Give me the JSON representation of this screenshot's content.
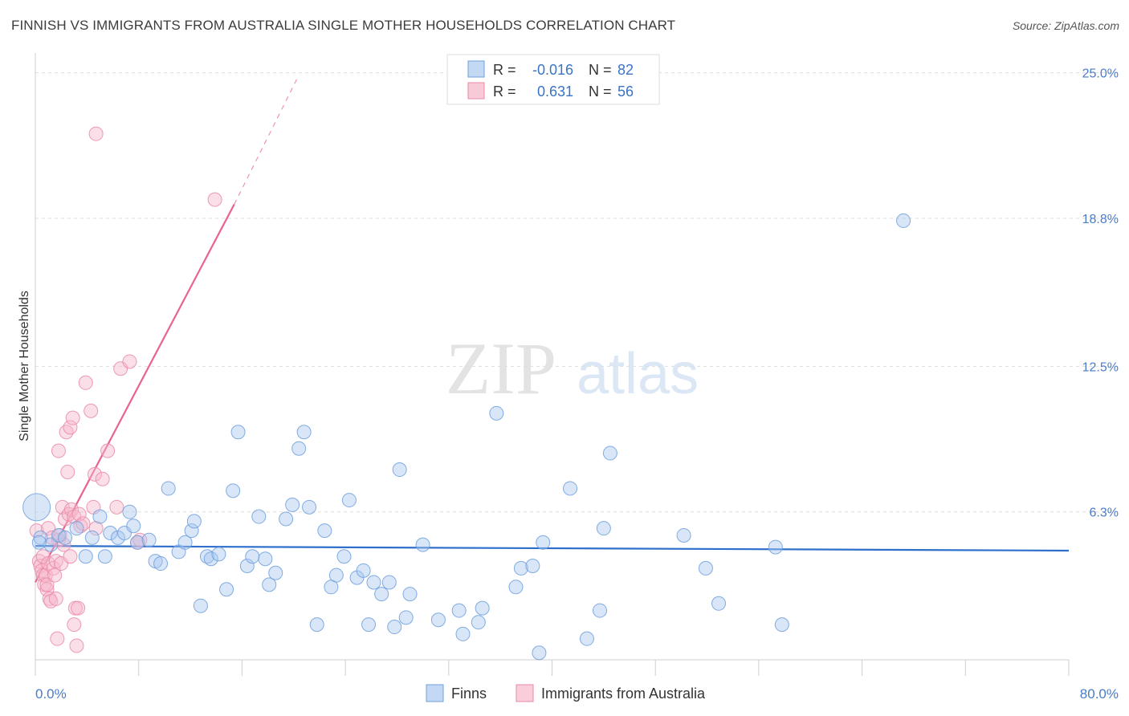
{
  "header": {
    "title": "FINNISH VS IMMIGRANTS FROM AUSTRALIA SINGLE MOTHER HOUSEHOLDS CORRELATION CHART",
    "source": "Source: ZipAtlas.com"
  },
  "watermark": {
    "zip": "ZIP",
    "atlas": "atlas"
  },
  "legend_box": {
    "rows": [
      {
        "r_label": "R =",
        "r_value": "-0.016",
        "n_label": "N =",
        "n_value": "82",
        "color": "#9bbfeb"
      },
      {
        "r_label": "R =",
        "r_value": "0.631",
        "n_label": "N =",
        "n_value": "56",
        "color": "#f4a7be"
      }
    ]
  },
  "colors": {
    "finns_fill": "#a9c8f0",
    "finns_stroke": "#6f9fdc",
    "finns_line": "#2e6fcc",
    "aus_fill": "#f7b8cb",
    "aus_stroke": "#ea8aa7",
    "aus_line": "#e8648f",
    "tick_text": "#4a7cc7",
    "grid": "#dddddd"
  },
  "chart_data": {
    "type": "scatter",
    "title": "FINNISH VS IMMIGRANTS FROM AUSTRALIA SINGLE MOTHER HOUSEHOLDS CORRELATION CHART",
    "xlabel": "",
    "ylabel": "Single Mother Households",
    "xlim": [
      0,
      80
    ],
    "ylim": [
      0,
      25.5
    ],
    "x_tick_labels": [
      "0.0%",
      "80.0%"
    ],
    "y_ticks": [
      6.3,
      12.5,
      18.8,
      25.0
    ],
    "y_tick_labels": [
      "6.3%",
      "12.5%",
      "18.8%",
      "25.0%"
    ],
    "grid": true,
    "legend_position": "top-center",
    "series": [
      {
        "name": "Finns",
        "r": -0.016,
        "n": 82,
        "trend": {
          "x0": 0,
          "y0": 4.85,
          "x1": 80,
          "y1": 4.65,
          "style": "solid"
        },
        "points": [
          [
            0.1,
            6.5
          ],
          [
            0.4,
            5.2
          ],
          [
            1.2,
            4.9
          ],
          [
            1.8,
            5.3
          ],
          [
            2.3,
            5.2
          ],
          [
            3.2,
            5.6
          ],
          [
            3.9,
            4.4
          ],
          [
            4.4,
            5.2
          ],
          [
            5.0,
            6.1
          ],
          [
            5.4,
            4.4
          ],
          [
            5.8,
            5.4
          ],
          [
            6.4,
            5.2
          ],
          [
            6.9,
            5.4
          ],
          [
            7.3,
            6.3
          ],
          [
            7.9,
            5.0
          ],
          [
            7.6,
            5.7
          ],
          [
            8.8,
            5.1
          ],
          [
            9.3,
            4.2
          ],
          [
            9.7,
            4.1
          ],
          [
            10.3,
            7.3
          ],
          [
            11.1,
            4.6
          ],
          [
            11.6,
            5.0
          ],
          [
            12.1,
            5.5
          ],
          [
            12.3,
            5.9
          ],
          [
            12.8,
            2.3
          ],
          [
            13.3,
            4.4
          ],
          [
            13.6,
            4.3
          ],
          [
            14.2,
            4.5
          ],
          [
            14.8,
            3.0
          ],
          [
            15.3,
            7.2
          ],
          [
            15.7,
            9.7
          ],
          [
            16.4,
            4.0
          ],
          [
            16.8,
            4.4
          ],
          [
            17.3,
            6.1
          ],
          [
            17.8,
            4.3
          ],
          [
            18.1,
            3.2
          ],
          [
            18.6,
            3.7
          ],
          [
            19.4,
            6.0
          ],
          [
            19.9,
            6.6
          ],
          [
            20.4,
            9.0
          ],
          [
            20.8,
            9.7
          ],
          [
            21.2,
            6.5
          ],
          [
            21.8,
            1.5
          ],
          [
            22.4,
            5.5
          ],
          [
            22.9,
            3.1
          ],
          [
            23.3,
            3.6
          ],
          [
            23.9,
            4.4
          ],
          [
            24.3,
            6.8
          ],
          [
            24.9,
            3.5
          ],
          [
            25.4,
            3.8
          ],
          [
            25.8,
            1.5
          ],
          [
            26.2,
            3.3
          ],
          [
            26.8,
            2.8
          ],
          [
            27.4,
            3.3
          ],
          [
            27.8,
            1.4
          ],
          [
            28.2,
            8.1
          ],
          [
            28.7,
            1.8
          ],
          [
            29.0,
            2.8
          ],
          [
            30.0,
            4.9
          ],
          [
            31.2,
            1.7
          ],
          [
            32.8,
            2.1
          ],
          [
            33.1,
            1.1
          ],
          [
            34.3,
            1.6
          ],
          [
            34.6,
            2.2
          ],
          [
            35.7,
            10.5
          ],
          [
            37.2,
            3.1
          ],
          [
            37.6,
            3.9
          ],
          [
            38.5,
            4.0
          ],
          [
            39.0,
            0.3
          ],
          [
            39.3,
            5.0
          ],
          [
            41.4,
            7.3
          ],
          [
            42.7,
            0.9
          ],
          [
            43.7,
            2.1
          ],
          [
            44.0,
            5.6
          ],
          [
            44.5,
            8.8
          ],
          [
            50.2,
            5.3
          ],
          [
            51.9,
            3.9
          ],
          [
            52.9,
            2.4
          ],
          [
            57.3,
            4.8
          ],
          [
            57.8,
            1.5
          ],
          [
            67.2,
            18.7
          ],
          [
            0.3,
            5.0
          ]
        ]
      },
      {
        "name": "Immigrants from Australia",
        "r": 0.631,
        "n": 56,
        "trend": {
          "x0": 0,
          "y0": 3.3,
          "x1": 15.4,
          "y1": 19.4,
          "style": "solid"
        },
        "trend_extension": {
          "x0": 15.4,
          "y0": 19.4,
          "x1": 20.4,
          "y1": 24.9,
          "style": "dashed"
        },
        "points": [
          [
            0.1,
            5.5
          ],
          [
            0.3,
            4.2
          ],
          [
            0.4,
            4.0
          ],
          [
            0.5,
            3.8
          ],
          [
            0.6,
            4.4
          ],
          [
            0.6,
            3.6
          ],
          [
            0.7,
            3.2
          ],
          [
            0.8,
            3.6
          ],
          [
            0.9,
            3.0
          ],
          [
            0.9,
            3.2
          ],
          [
            1.0,
            4.1
          ],
          [
            1.0,
            5.6
          ],
          [
            1.1,
            2.6
          ],
          [
            1.2,
            2.5
          ],
          [
            1.3,
            5.2
          ],
          [
            1.4,
            3.9
          ],
          [
            1.5,
            3.6
          ],
          [
            1.6,
            4.2
          ],
          [
            1.6,
            2.6
          ],
          [
            1.7,
            0.9
          ],
          [
            1.8,
            5.1
          ],
          [
            1.8,
            8.9
          ],
          [
            1.9,
            5.3
          ],
          [
            2.0,
            4.1
          ],
          [
            2.1,
            6.5
          ],
          [
            2.2,
            4.9
          ],
          [
            2.3,
            6.0
          ],
          [
            2.4,
            9.7
          ],
          [
            2.5,
            8.0
          ],
          [
            2.6,
            6.2
          ],
          [
            2.7,
            4.4
          ],
          [
            2.7,
            9.9
          ],
          [
            2.8,
            6.4
          ],
          [
            2.9,
            10.3
          ],
          [
            3.0,
            1.5
          ],
          [
            3.0,
            6.1
          ],
          [
            3.1,
            2.2
          ],
          [
            3.2,
            0.6
          ],
          [
            3.3,
            2.2
          ],
          [
            3.4,
            6.2
          ],
          [
            3.5,
            5.7
          ],
          [
            3.7,
            5.8
          ],
          [
            3.9,
            11.8
          ],
          [
            4.3,
            10.6
          ],
          [
            4.5,
            6.5
          ],
          [
            4.6,
            7.9
          ],
          [
            4.7,
            5.6
          ],
          [
            5.2,
            7.7
          ],
          [
            5.6,
            8.9
          ],
          [
            6.3,
            6.5
          ],
          [
            6.6,
            12.4
          ],
          [
            7.3,
            12.7
          ],
          [
            7.9,
            5.0
          ],
          [
            8.1,
            5.1
          ],
          [
            4.7,
            22.4
          ],
          [
            13.9,
            19.6
          ]
        ]
      }
    ]
  },
  "bottom_legend": [
    {
      "label": "Finns",
      "color": "#a9c8f0"
    },
    {
      "label": "Immigrants from Australia",
      "color": "#f7b8cb"
    }
  ]
}
